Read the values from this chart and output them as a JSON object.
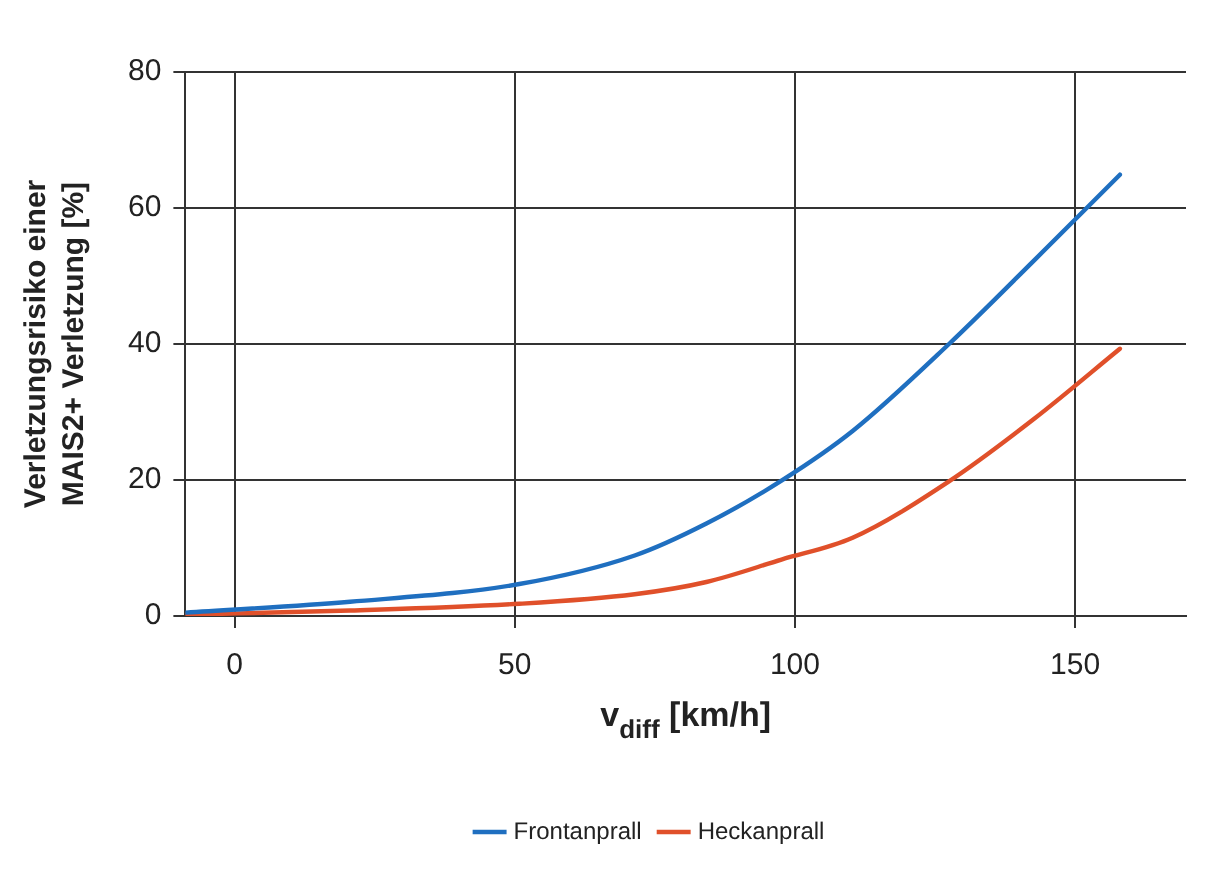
{
  "chart_data": {
    "type": "line",
    "xlabel": "v$_{diff}$ [km/h]",
    "ylabel": "Verletzungsrisiko einer\nMAIS2+ Verletzung [%]",
    "x": [
      -8.7,
      20.6,
      50.8,
      71.4,
      84.2,
      97.6,
      110.3,
      127.5,
      142.7,
      158
    ],
    "series": [
      {
        "name": "Frontanprall",
        "color": "#1f6fc0",
        "values": [
          0.5,
          2.1,
          4.7,
          8.9,
          13.6,
          19.9,
          27.2,
          40,
          52.3,
          64.9
        ]
      },
      {
        "name": "Heckanprall",
        "color": "#e0502a",
        "values": [
          0.2,
          0.8,
          1.8,
          3.2,
          5,
          8.3,
          11.5,
          19.8,
          29,
          39.3
        ]
      }
    ],
    "xlim": [
      -8.8,
      169.8
    ],
    "xticks": [
      0,
      50,
      100,
      150
    ],
    "ylim": [
      0,
      80
    ],
    "yticks": [
      0,
      20,
      40,
      60,
      80
    ],
    "grid": true,
    "legend": "bottom",
    "marker": "none",
    "line_style": "solid"
  }
}
